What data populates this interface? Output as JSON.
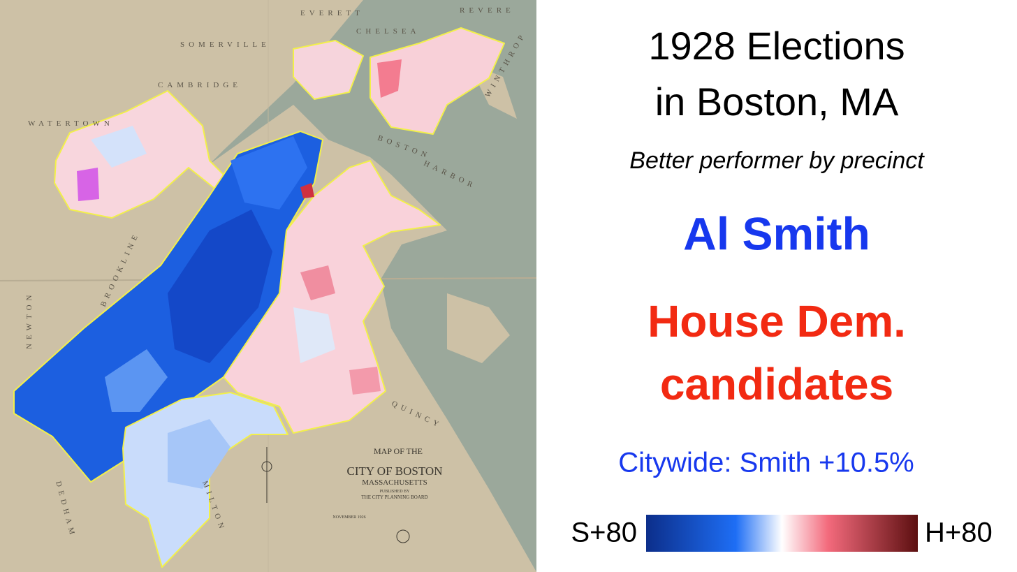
{
  "map": {
    "place_labels": [
      "EVERETT",
      "REVERE",
      "CHELSEA",
      "SOMERVILLE",
      "CAMBRIDGE",
      "WATERTOWN",
      "BROOKLINE",
      "NEWTON",
      "DEDHAM",
      "MILTON",
      "QUINCY",
      "BOSTON",
      "HARBOR",
      "WINTHROP"
    ],
    "cartouche": [
      "MAP OF THE",
      "CITY OF BOSTON",
      "MASSACHUSETTS",
      "PUBLISHED BY",
      "THE CITY PLANNING BOARD",
      "NOVEMBER 1926"
    ]
  },
  "header": {
    "title": [
      "1928 Elections",
      "in Boston, MA"
    ],
    "subtitle": "Better performer by precinct"
  },
  "candidates": {
    "smith": "Al Smith",
    "house": [
      "House Dem.",
      "candidates"
    ]
  },
  "citywide": "Citywide: Smith +10.5%",
  "scale": {
    "left": "S+80",
    "right": "H+80"
  }
}
